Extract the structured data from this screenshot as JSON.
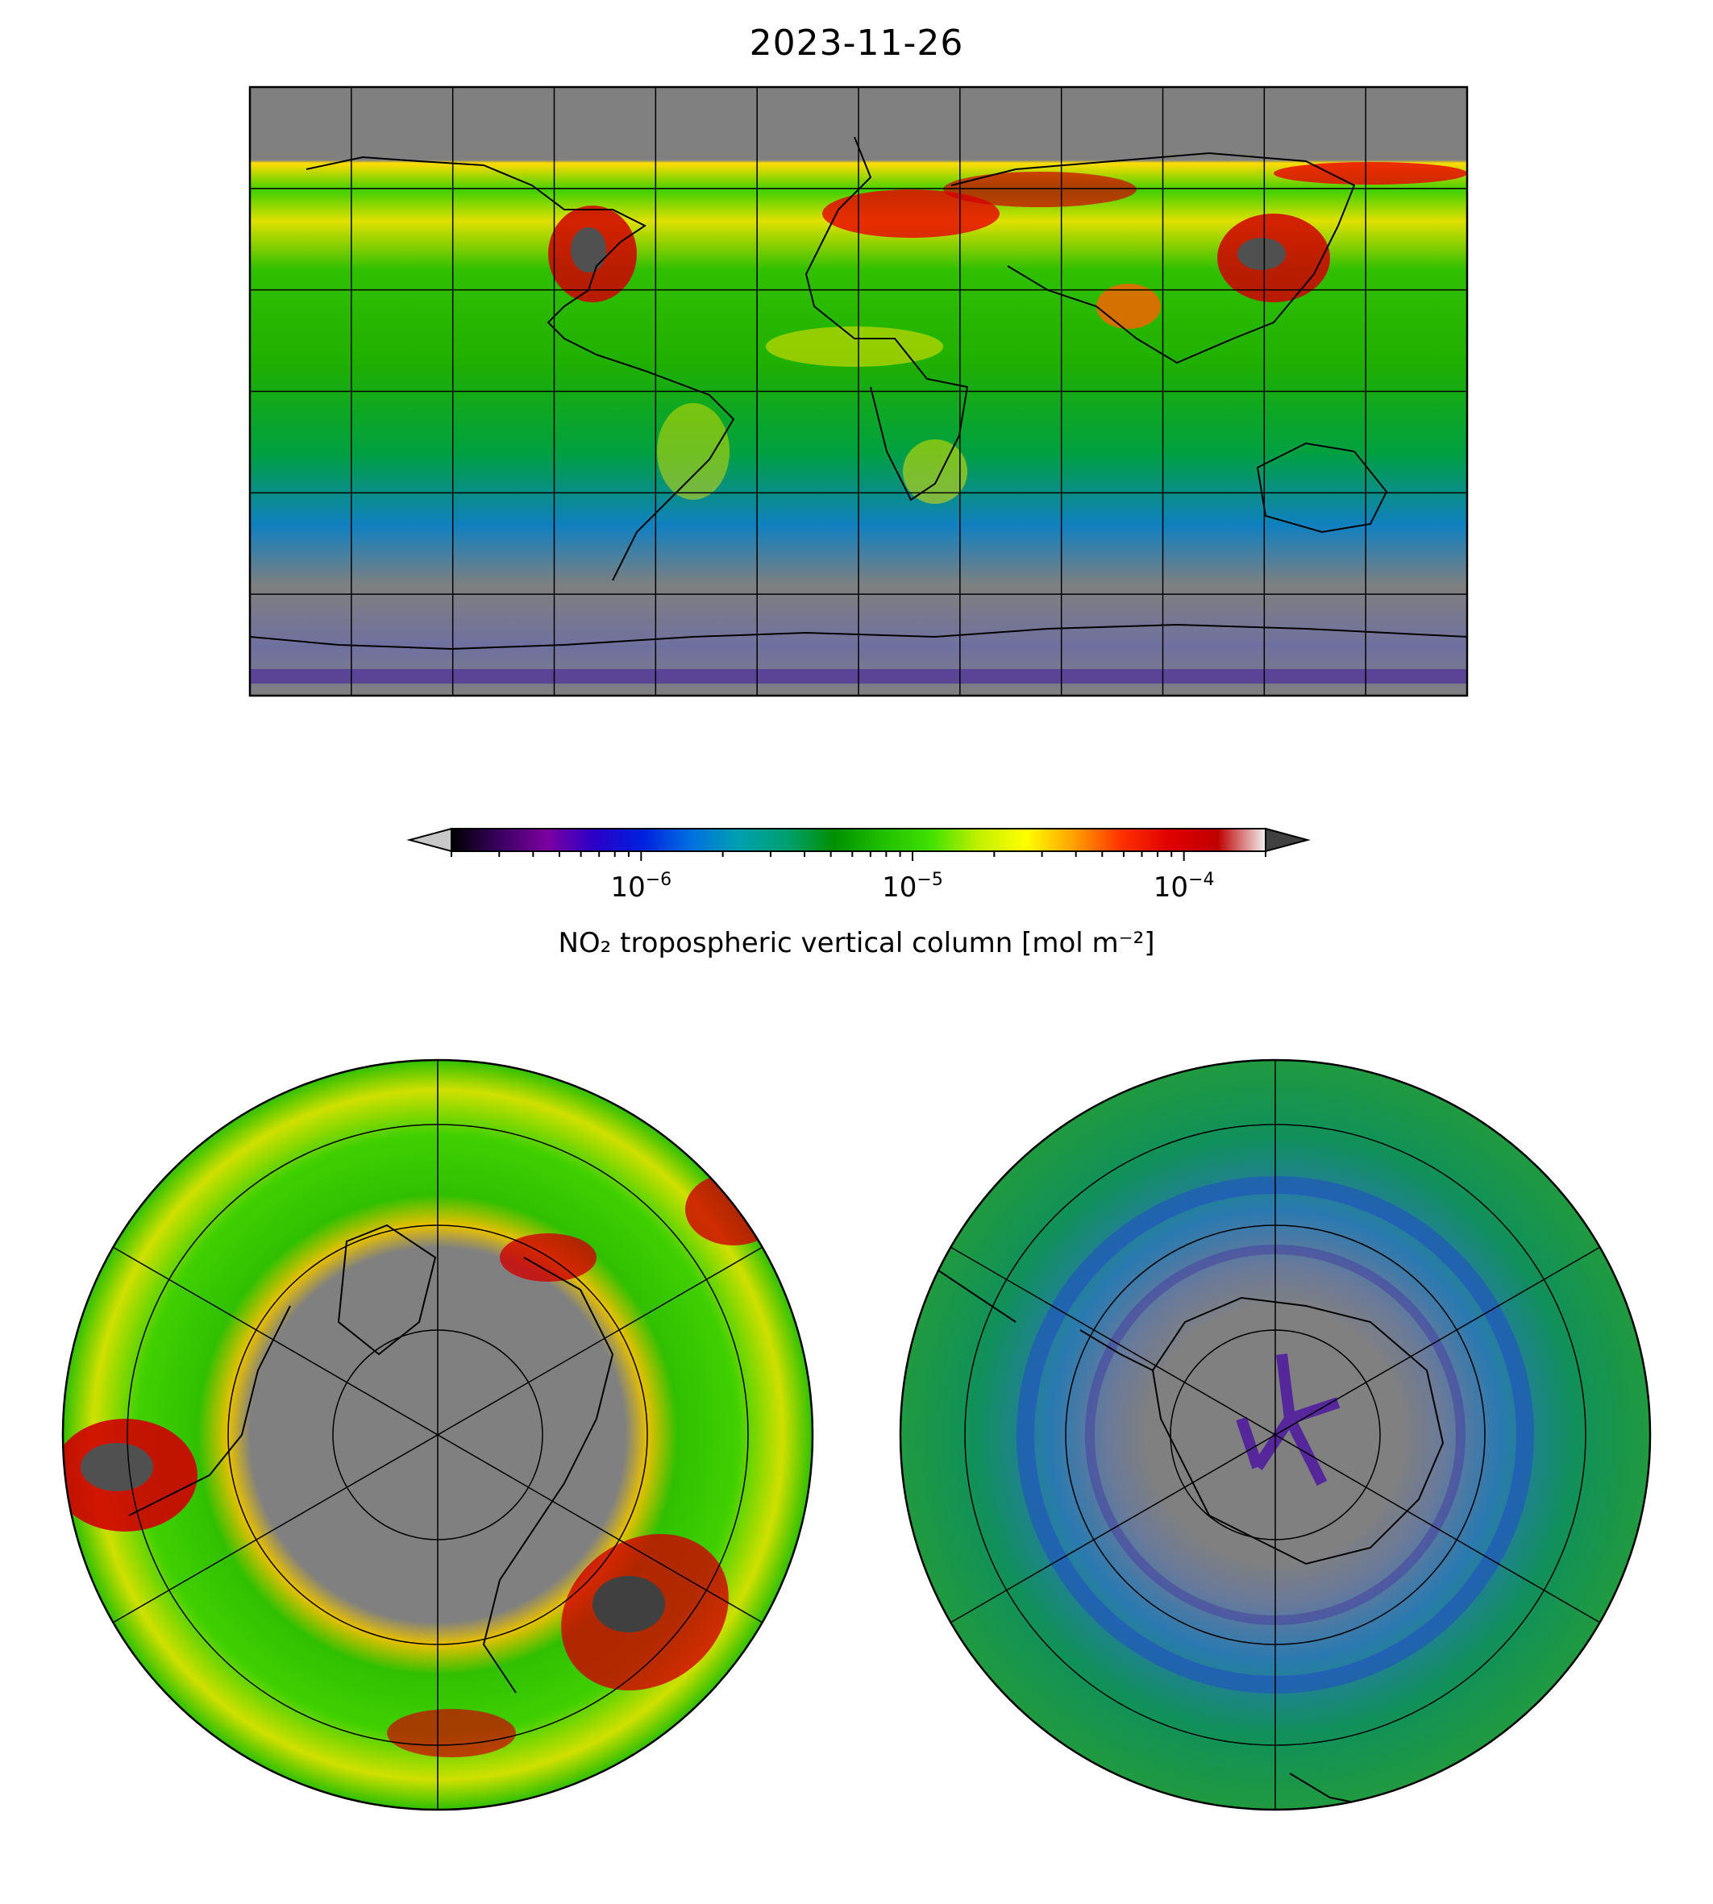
{
  "figure": {
    "title": "2023-11-26"
  },
  "maps": [
    {
      "name": "global equirectangular map",
      "projection": "PlateCarree",
      "gridline_spacing_deg": 30
    },
    {
      "name": "northern hemisphere polar map",
      "projection": "NorthPolarStereo"
    },
    {
      "name": "southern hemisphere polar map",
      "projection": "SouthPolarStereo"
    }
  ],
  "colorbar": {
    "label": "NO₂ tropospheric vertical column [mol m⁻²]",
    "scale": "log",
    "extend": "both",
    "range": [
      2e-07,
      0.0002
    ],
    "tick_labels": [
      {
        "base": "10",
        "exponent": "−6",
        "value": 1e-06
      },
      {
        "base": "10",
        "exponent": "−5",
        "value": 1e-05
      },
      {
        "base": "10",
        "exponent": "−4",
        "value": 0.0001
      }
    ],
    "colors": [
      "#000000",
      "#3a0060",
      "#7b00a0",
      "#2a00c8",
      "#0020e0",
      "#0070e0",
      "#00a0b0",
      "#00a070",
      "#009000",
      "#20c000",
      "#40e000",
      "#c0f000",
      "#ffff00",
      "#ffa000",
      "#ff3000",
      "#e00000",
      "#c00000",
      "#f0f0f0"
    ],
    "under_color": "#c8c8c8",
    "over_color": "#404040",
    "missing_color": "#808080"
  }
}
